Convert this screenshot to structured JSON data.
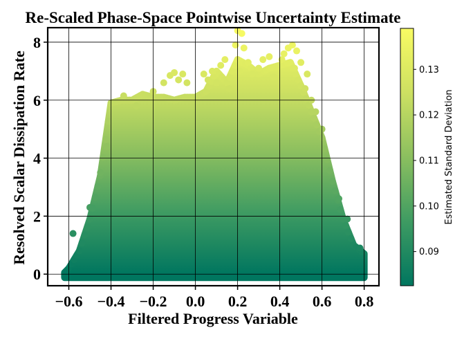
{
  "chart_data": {
    "type": "scatter",
    "title": "Re-Scaled Phase-Space Pointwise Uncertainty Estimate",
    "xlabel": "Filtered Progress Variable",
    "ylabel": "Resolved Scalar Dissipation Rate",
    "xlim": [
      -0.7,
      0.87
    ],
    "ylim": [
      -0.4,
      8.5
    ],
    "xticks": [
      -0.6,
      -0.4,
      -0.2,
      0.0,
      0.2,
      0.4,
      0.6,
      0.8
    ],
    "xtick_labels": [
      "−0.6",
      "−0.4",
      "−0.2",
      "0.0",
      "0.2",
      "0.4",
      "0.6",
      "0.8"
    ],
    "yticks": [
      0,
      2,
      4,
      6,
      8
    ],
    "ytick_labels": [
      "0",
      "2",
      "4",
      "6",
      "8"
    ],
    "grid": true,
    "colorbar": {
      "label": "Estimated Standard Deviation",
      "range": [
        0.0825,
        0.139
      ],
      "ticks": [
        0.09,
        0.1,
        0.11,
        0.12,
        0.13
      ],
      "tick_labels": [
        "0.09",
        "0.10",
        "0.11",
        "0.12",
        "0.13"
      ],
      "colormap": [
        "#00765f",
        "#3e9b62",
        "#8bbf5f",
        "#cde062",
        "#f8fb63"
      ]
    },
    "envelope": {
      "x": [
        -0.62,
        -0.6,
        -0.55,
        -0.5,
        -0.45,
        -0.4,
        -0.35,
        -0.3,
        -0.25,
        -0.2,
        -0.15,
        -0.1,
        -0.05,
        0.0,
        0.05,
        0.1,
        0.15,
        0.2,
        0.25,
        0.3,
        0.35,
        0.4,
        0.45,
        0.5,
        0.55,
        0.6,
        0.65,
        0.7,
        0.75,
        0.8
      ],
      "ymax": [
        0.05,
        0.2,
        0.8,
        1.9,
        3.4,
        5.9,
        6.0,
        6.0,
        6.2,
        6.1,
        6.1,
        6.0,
        6.1,
        6.1,
        6.3,
        7.0,
        6.6,
        7.4,
        7.2,
        6.9,
        7.1,
        7.2,
        7.3,
        6.5,
        5.6,
        4.7,
        3.2,
        1.9,
        1.0,
        0.7
      ]
    },
    "outliers": [
      {
        "x": -0.34,
        "y": 6.15
      },
      {
        "x": -0.28,
        "y": 5.8
      },
      {
        "x": -0.2,
        "y": 6.3
      },
      {
        "x": -0.15,
        "y": 6.6
      },
      {
        "x": -0.12,
        "y": 6.85
      },
      {
        "x": -0.1,
        "y": 6.95
      },
      {
        "x": -0.08,
        "y": 6.7
      },
      {
        "x": -0.06,
        "y": 6.9
      },
      {
        "x": -0.04,
        "y": 6.6
      },
      {
        "x": 0.04,
        "y": 6.9
      },
      {
        "x": 0.06,
        "y": 6.7
      },
      {
        "x": 0.08,
        "y": 7.0
      },
      {
        "x": 0.12,
        "y": 7.2
      },
      {
        "x": 0.14,
        "y": 7.4
      },
      {
        "x": 0.1,
        "y": 6.6
      },
      {
        "x": 0.16,
        "y": 6.4
      },
      {
        "x": 0.19,
        "y": 7.9
      },
      {
        "x": 0.2,
        "y": 8.4
      },
      {
        "x": 0.22,
        "y": 8.3
      },
      {
        "x": 0.23,
        "y": 7.8
      },
      {
        "x": 0.25,
        "y": 7.3
      },
      {
        "x": 0.21,
        "y": 7.0
      },
      {
        "x": 0.27,
        "y": 6.9
      },
      {
        "x": 0.3,
        "y": 7.1
      },
      {
        "x": 0.32,
        "y": 7.4
      },
      {
        "x": 0.35,
        "y": 7.5
      },
      {
        "x": 0.37,
        "y": 6.8
      },
      {
        "x": 0.39,
        "y": 7.15
      },
      {
        "x": 0.41,
        "y": 7.4
      },
      {
        "x": 0.42,
        "y": 7.6
      },
      {
        "x": 0.44,
        "y": 7.8
      },
      {
        "x": 0.46,
        "y": 7.9
      },
      {
        "x": 0.48,
        "y": 7.7
      },
      {
        "x": 0.5,
        "y": 7.3
      },
      {
        "x": 0.47,
        "y": 7.1
      },
      {
        "x": 0.53,
        "y": 6.9
      },
      {
        "x": 0.55,
        "y": 6.0
      },
      {
        "x": 0.57,
        "y": 5.6
      },
      {
        "x": 0.6,
        "y": 5.0
      },
      {
        "x": 0.52,
        "y": 6.4
      },
      {
        "x": -0.42,
        "y": 4.4
      },
      {
        "x": -0.45,
        "y": 3.5
      },
      {
        "x": -0.5,
        "y": 2.3
      },
      {
        "x": -0.58,
        "y": 1.4
      },
      {
        "x": -0.62,
        "y": 0.05
      },
      {
        "x": 0.68,
        "y": 2.6
      },
      {
        "x": 0.72,
        "y": 1.9
      },
      {
        "x": 0.78,
        "y": 0.9
      }
    ]
  }
}
